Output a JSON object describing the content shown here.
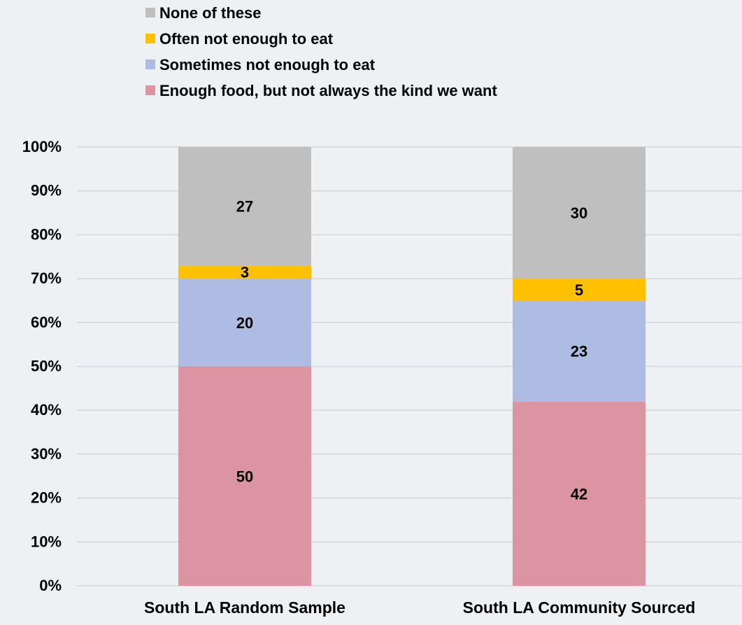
{
  "chart_data": {
    "type": "bar",
    "stacked": true,
    "categories": [
      "South LA Random Sample",
      "South LA Community Sourced"
    ],
    "series": [
      {
        "name": "Enough food, but not always the kind we want",
        "values": [
          50,
          42
        ],
        "color": "#dc94a3"
      },
      {
        "name": "Sometimes not enough to eat",
        "values": [
          20,
          23
        ],
        "color": "#aebce4"
      },
      {
        "name": "Often not enough to eat",
        "values": [
          3,
          5
        ],
        "color": "#ffc000"
      },
      {
        "name": "None of these",
        "values": [
          27,
          30
        ],
        "color": "#bfbfbf"
      }
    ],
    "legend_order": [
      "None of these",
      "Often not enough to eat",
      "Sometimes not enough to eat",
      "Enough food, but not always the kind we want"
    ],
    "legend_position": "top",
    "yticks": [
      "0%",
      "10%",
      "20%",
      "30%",
      "40%",
      "50%",
      "60%",
      "70%",
      "80%",
      "90%",
      "100%"
    ],
    "ylim": [
      0,
      100
    ],
    "grid": true,
    "data_labels": true,
    "title": "",
    "xlabel": "",
    "ylabel": ""
  }
}
